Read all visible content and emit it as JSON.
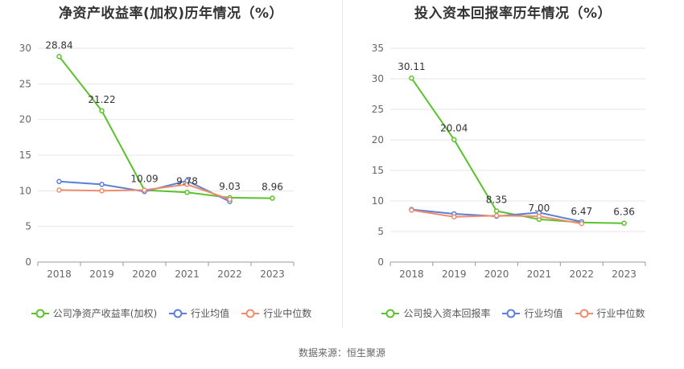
{
  "source_label": "数据来源：恒生聚源",
  "chart_data": [
    {
      "type": "line",
      "title": "净资产收益率(加权)历年情况（%）",
      "categories": [
        "2018",
        "2019",
        "2020",
        "2021",
        "2022",
        "2023"
      ],
      "ylim": [
        0,
        30
      ],
      "yticks": [
        0,
        5,
        10,
        15,
        20,
        25,
        30
      ],
      "grid": true,
      "legend_position": "bottom",
      "series": [
        {
          "name": "公司净资产收益率(加权)",
          "color": "#5cc22c",
          "values": [
            28.84,
            21.22,
            10.09,
            9.78,
            9.03,
            8.96
          ],
          "labeled": true
        },
        {
          "name": "行业均值",
          "color": "#5b7fd6",
          "values": [
            11.3,
            10.9,
            9.9,
            11.4,
            8.5,
            null
          ],
          "labeled": false
        },
        {
          "name": "行业中位数",
          "color": "#f08c6c",
          "values": [
            10.1,
            10.0,
            10.1,
            10.9,
            8.8,
            null
          ],
          "labeled": false
        }
      ]
    },
    {
      "type": "line",
      "title": "投入资本回报率历年情况（%）",
      "categories": [
        "2018",
        "2019",
        "2020",
        "2021",
        "2022",
        "2023"
      ],
      "ylim": [
        0,
        35
      ],
      "yticks": [
        0,
        5,
        10,
        15,
        20,
        25,
        30,
        35
      ],
      "grid": true,
      "legend_position": "bottom",
      "series": [
        {
          "name": "公司投入资本回报率",
          "color": "#5cc22c",
          "values": [
            30.11,
            20.04,
            8.35,
            7.0,
            6.47,
            6.36
          ],
          "labeled": true
        },
        {
          "name": "行业均值",
          "color": "#5b7fd6",
          "values": [
            8.6,
            7.9,
            7.5,
            8.1,
            6.6,
            null
          ],
          "labeled": false
        },
        {
          "name": "行业中位数",
          "color": "#f08c6c",
          "values": [
            8.5,
            7.4,
            7.6,
            7.5,
            6.3,
            null
          ],
          "labeled": false
        }
      ]
    }
  ]
}
